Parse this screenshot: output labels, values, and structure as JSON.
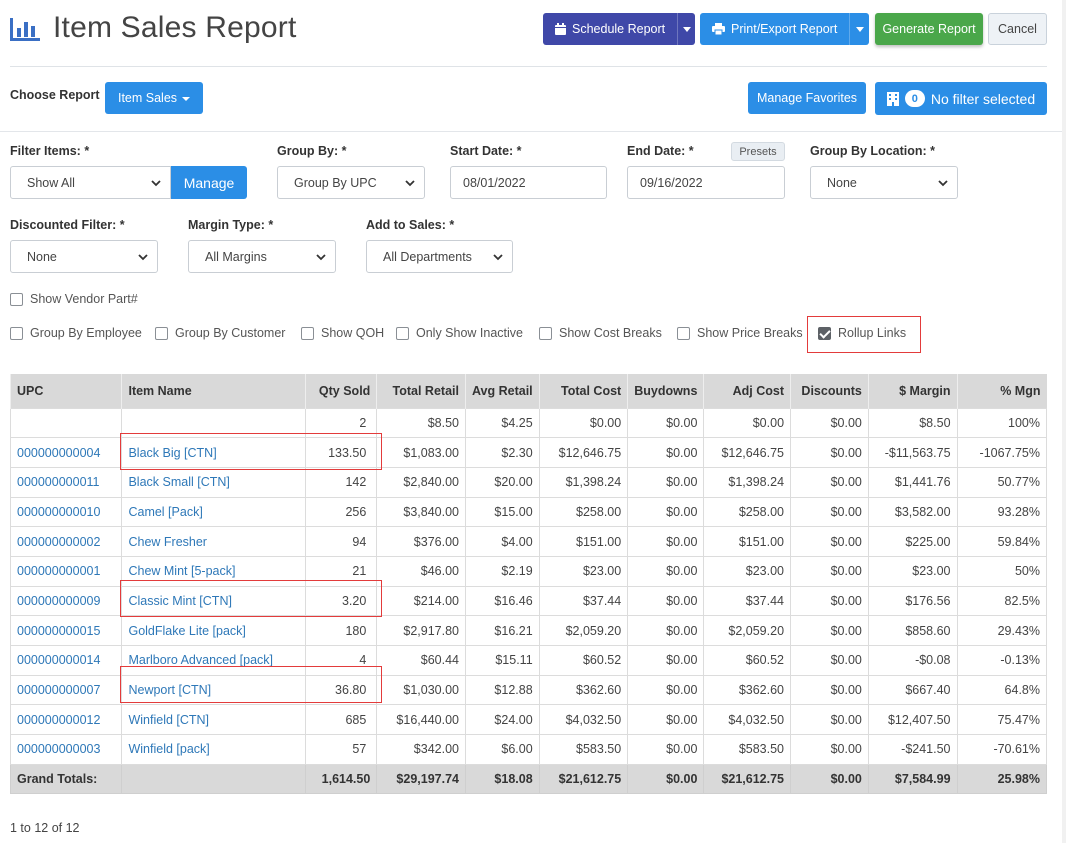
{
  "header": {
    "title": "Item Sales Report",
    "schedule_label": "Schedule Report",
    "print_label": "Print/Export Report",
    "generate_label": "Generate Report",
    "cancel_label": "Cancel"
  },
  "report_bar": {
    "choose_label": "Choose Report",
    "report_selected": "Item Sales",
    "favorites_label": "Manage Favorites",
    "filter_count": "0",
    "filter_label": "No filter selected"
  },
  "filters": {
    "filter_items_label": "Filter Items: *",
    "filter_items_value": "Show All",
    "manage_label": "Manage",
    "group_by_label": "Group By: *",
    "group_by_value": "Group By UPC",
    "start_date_label": "Start Date: *",
    "start_date_value": "08/01/2022",
    "end_date_label": "End Date: *",
    "presets_label": "Presets",
    "end_date_value": "09/16/2022",
    "group_location_label": "Group By Location: *",
    "group_location_value": "None",
    "discounted_label": "Discounted Filter: *",
    "discounted_value": "None",
    "margin_type_label": "Margin Type: *",
    "margin_type_value": "All Margins",
    "add_to_sales_label": "Add to Sales: *",
    "add_to_sales_value": "All Departments"
  },
  "options": {
    "vendor_part": {
      "label": "Show Vendor Part#",
      "checked": false
    },
    "group_employee": {
      "label": "Group By Employee",
      "checked": false
    },
    "group_customer": {
      "label": "Group By Customer",
      "checked": false
    },
    "show_qoh": {
      "label": "Show QOH",
      "checked": false
    },
    "only_inactive": {
      "label": "Only Show Inactive",
      "checked": false
    },
    "cost_breaks": {
      "label": "Show Cost Breaks",
      "checked": false
    },
    "price_breaks": {
      "label": "Show Price Breaks",
      "checked": false
    },
    "rollup_links": {
      "label": "Rollup Links",
      "checked": true
    }
  },
  "table": {
    "columns": [
      "UPC",
      "Item Name",
      "Qty Sold",
      "Total Retail",
      "Avg Retail",
      "Total Cost",
      "Buydowns",
      "Adj Cost",
      "Discounts",
      "$ Margin",
      "% Mgn"
    ],
    "rows": [
      [
        "",
        "",
        "2",
        "$8.50",
        "$4.25",
        "$0.00",
        "$0.00",
        "$0.00",
        "$0.00",
        "$8.50",
        "100%"
      ],
      [
        "000000000004",
        "Black Big [CTN]",
        "133.50",
        "$1,083.00",
        "$2.30",
        "$12,646.75",
        "$0.00",
        "$12,646.75",
        "$0.00",
        "-$11,563.75",
        "-1067.75%"
      ],
      [
        "000000000011",
        "Black Small [CTN]",
        "142",
        "$2,840.00",
        "$20.00",
        "$1,398.24",
        "$0.00",
        "$1,398.24",
        "$0.00",
        "$1,441.76",
        "50.77%"
      ],
      [
        "000000000010",
        "Camel [Pack]",
        "256",
        "$3,840.00",
        "$15.00",
        "$258.00",
        "$0.00",
        "$258.00",
        "$0.00",
        "$3,582.00",
        "93.28%"
      ],
      [
        "000000000002",
        "Chew Fresher",
        "94",
        "$376.00",
        "$4.00",
        "$151.00",
        "$0.00",
        "$151.00",
        "$0.00",
        "$225.00",
        "59.84%"
      ],
      [
        "000000000001",
        "Chew Mint [5-pack]",
        "21",
        "$46.00",
        "$2.19",
        "$23.00",
        "$0.00",
        "$23.00",
        "$0.00",
        "$23.00",
        "50%"
      ],
      [
        "000000000009",
        "Classic Mint [CTN]",
        "3.20",
        "$214.00",
        "$16.46",
        "$37.44",
        "$0.00",
        "$37.44",
        "$0.00",
        "$176.56",
        "82.5%"
      ],
      [
        "000000000015",
        "GoldFlake Lite [pack]",
        "180",
        "$2,917.80",
        "$16.21",
        "$2,059.20",
        "$0.00",
        "$2,059.20",
        "$0.00",
        "$858.60",
        "29.43%"
      ],
      [
        "000000000014",
        "Marlboro Advanced [pack]",
        "4",
        "$60.44",
        "$15.11",
        "$60.52",
        "$0.00",
        "$60.52",
        "$0.00",
        "-$0.08",
        "-0.13%"
      ],
      [
        "000000000007",
        "Newport [CTN]",
        "36.80",
        "$1,030.00",
        "$12.88",
        "$362.60",
        "$0.00",
        "$362.60",
        "$0.00",
        "$667.40",
        "64.8%"
      ],
      [
        "000000000012",
        "Winfield [CTN]",
        "685",
        "$16,440.00",
        "$24.00",
        "$4,032.50",
        "$0.00",
        "$4,032.50",
        "$0.00",
        "$12,407.50",
        "75.47%"
      ],
      [
        "000000000003",
        "Winfield [pack]",
        "57",
        "$342.00",
        "$6.00",
        "$583.50",
        "$0.00",
        "$583.50",
        "$0.00",
        "-$241.50",
        "-70.61%"
      ]
    ],
    "totals": [
      "Grand Totals:",
      "",
      "1,614.50",
      "$29,197.74",
      "$18.08",
      "$21,612.75",
      "$0.00",
      "$21,612.75",
      "$0.00",
      "$7,584.99",
      "25.98%"
    ]
  },
  "pager_text": "1 to 12 of 12",
  "colors": {
    "primary": "#2b8ee6",
    "schedule": "#3f48a8",
    "generate": "#4aa74a",
    "highlight": "#e33b3b",
    "link": "#2e78b8"
  }
}
